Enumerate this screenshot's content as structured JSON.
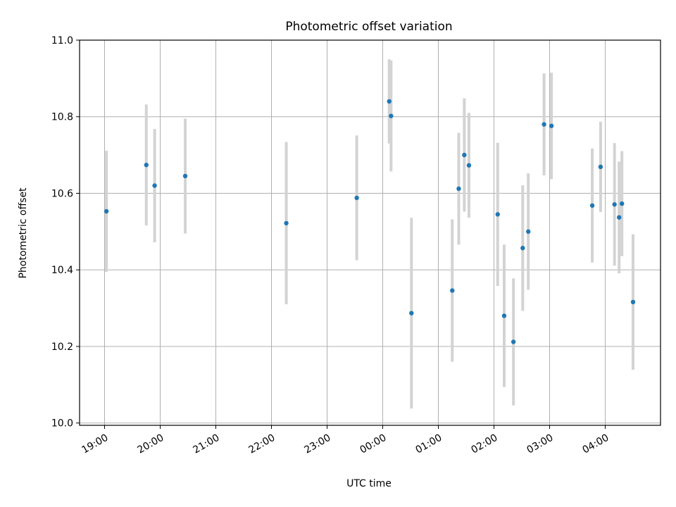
{
  "chart_data": {
    "type": "scatter",
    "title": "Photometric offset variation",
    "xlabel": "UTC time",
    "ylabel": "Photometric offset",
    "ylim": [
      10.0,
      11.0
    ],
    "yticks": [
      "10.0",
      "10.2",
      "10.4",
      "10.6",
      "10.8",
      "11.0"
    ],
    "xticks": [
      "19:00",
      "20:00",
      "21:00",
      "22:00",
      "23:00",
      "00:00",
      "01:00",
      "02:00",
      "03:00",
      "04:00"
    ],
    "grid": true,
    "colors": {
      "point": "#1f77b4",
      "errorbar": "#d3d3d3",
      "grid": "#b0b0b0"
    },
    "points": [
      {
        "t": "19:02",
        "y": 10.553,
        "yerr": 0.158
      },
      {
        "t": "19:45",
        "y": 10.674,
        "yerr": 0.158
      },
      {
        "t": "19:54",
        "y": 10.62,
        "yerr": 0.148
      },
      {
        "t": "20:27",
        "y": 10.645,
        "yerr": 0.15
      },
      {
        "t": "22:16",
        "y": 10.522,
        "yerr": 0.212
      },
      {
        "t": "23:32",
        "y": 10.588,
        "yerr": 0.163
      },
      {
        "t": "00:07",
        "y": 10.84,
        "yerr": 0.11
      },
      {
        "t": "00:09",
        "y": 10.802,
        "yerr": 0.145
      },
      {
        "t": "00:31",
        "y": 10.287,
        "yerr": 0.249
      },
      {
        "t": "01:15",
        "y": 10.346,
        "yerr": 0.186
      },
      {
        "t": "01:22",
        "y": 10.612,
        "yerr": 0.146
      },
      {
        "t": "01:28",
        "y": 10.7,
        "yerr": 0.148
      },
      {
        "t": "01:33",
        "y": 10.673,
        "yerr": 0.137
      },
      {
        "t": "02:04",
        "y": 10.545,
        "yerr": 0.187
      },
      {
        "t": "02:11",
        "y": 10.28,
        "yerr": 0.186
      },
      {
        "t": "02:21",
        "y": 10.212,
        "yerr": 0.166
      },
      {
        "t": "02:31",
        "y": 10.457,
        "yerr": 0.164
      },
      {
        "t": "02:37",
        "y": 10.5,
        "yerr": 0.152
      },
      {
        "t": "02:54",
        "y": 10.78,
        "yerr": 0.133
      },
      {
        "t": "03:02",
        "y": 10.776,
        "yerr": 0.139
      },
      {
        "t": "03:46",
        "y": 10.568,
        "yerr": 0.149
      },
      {
        "t": "03:55",
        "y": 10.669,
        "yerr": 0.118
      },
      {
        "t": "04:10",
        "y": 10.571,
        "yerr": 0.16
      },
      {
        "t": "04:15",
        "y": 10.537,
        "yerr": 0.146
      },
      {
        "t": "04:18",
        "y": 10.573,
        "yerr": 0.137
      },
      {
        "t": "04:30",
        "y": 10.316,
        "yerr": 0.177
      }
    ]
  }
}
